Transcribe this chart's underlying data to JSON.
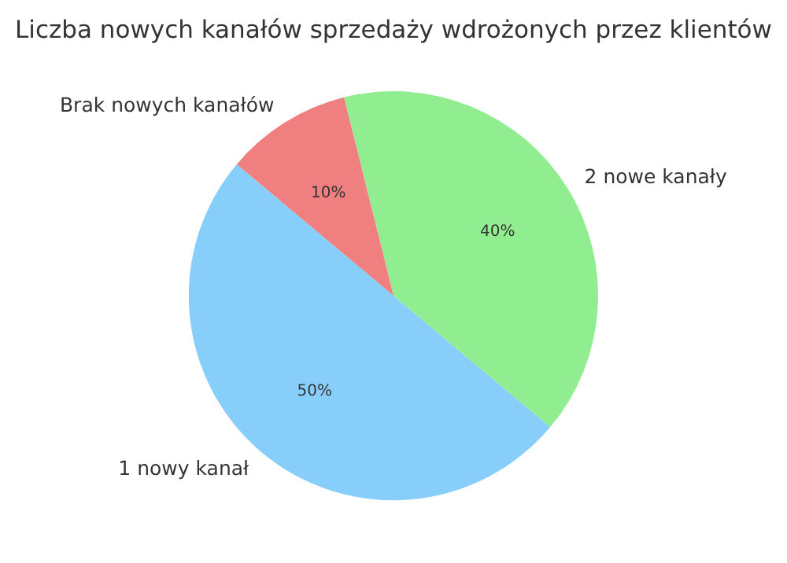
{
  "chart_data": {
    "type": "pie",
    "title": "Liczba nowych kanałów sprzedaży wdrożonych przez klientów",
    "categories": [
      "1 nowy kanał",
      "2 nowe kanały",
      "Brak nowych kanałów"
    ],
    "values": [
      50,
      40,
      10
    ],
    "colors": [
      "#87cefa",
      "#90ee90",
      "#f08080"
    ],
    "value_labels": [
      "50%",
      "40%",
      "10%"
    ]
  }
}
